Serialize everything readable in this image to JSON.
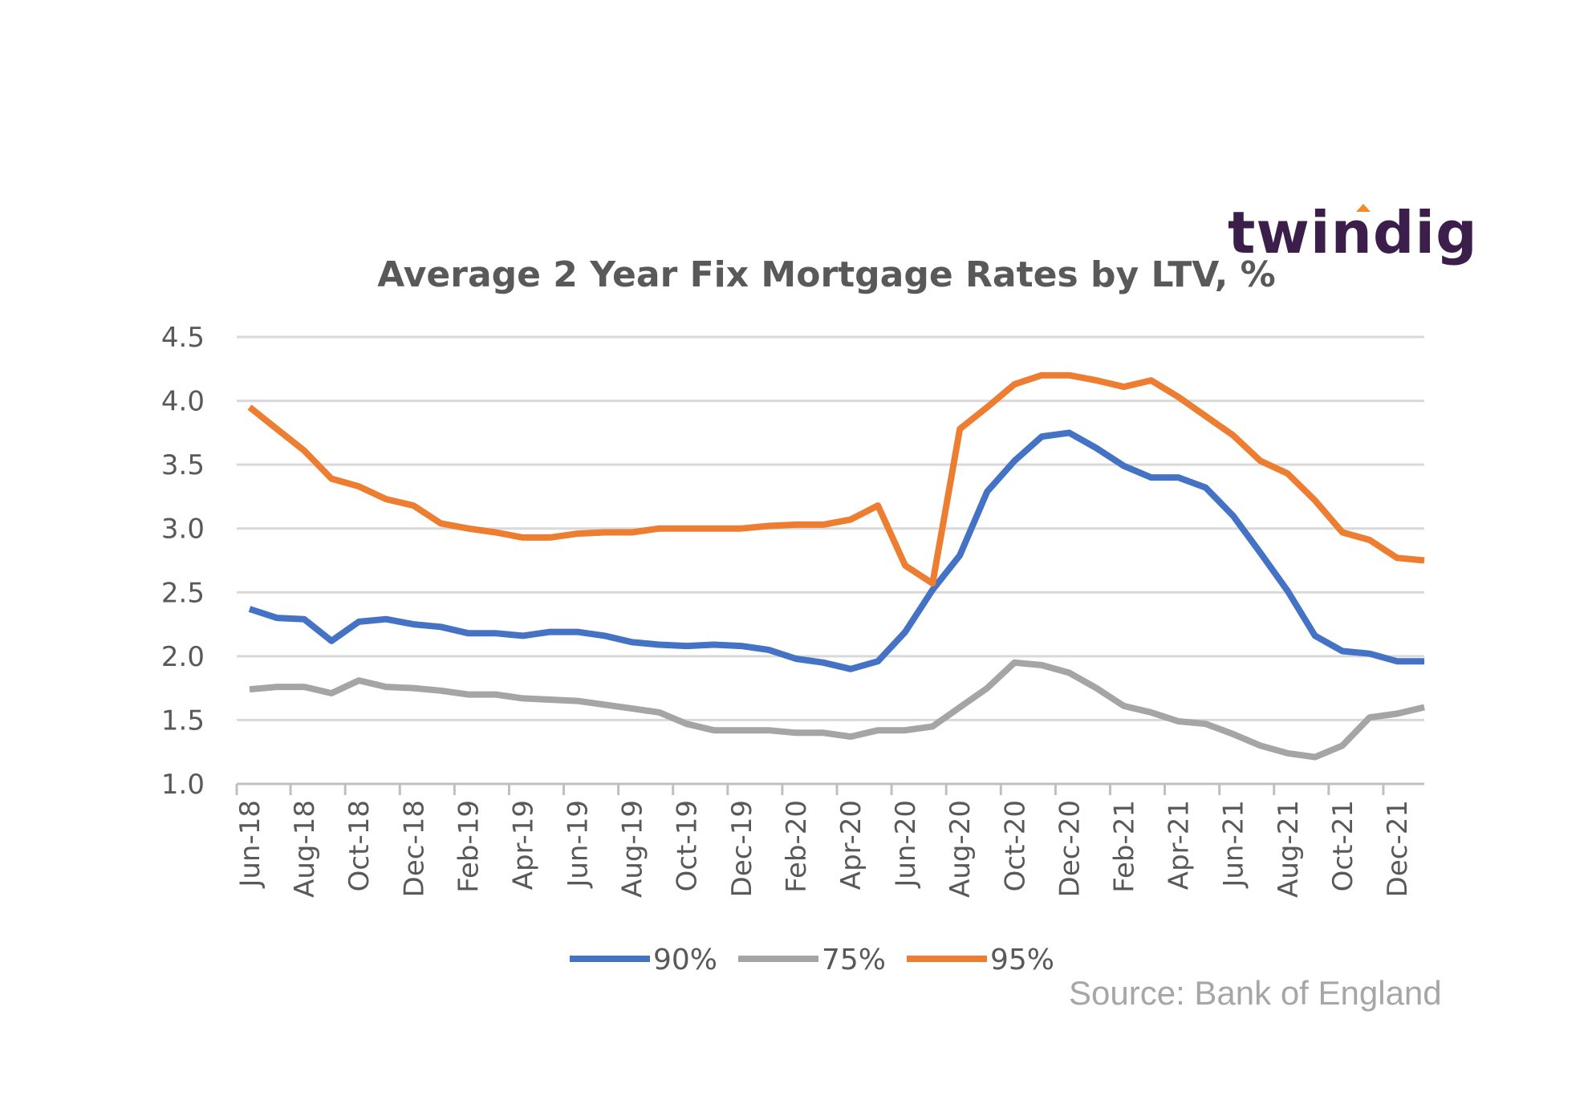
{
  "brand": {
    "name": "twindig",
    "accent_color": "#f28c28",
    "text_color": "#3b1f4a"
  },
  "source": "Source: Bank of England",
  "chart_data": {
    "type": "line",
    "title": "Average 2 Year Fix Mortgage Rates by LTV, %",
    "ylim": [
      1.0,
      4.5
    ],
    "yticks": [
      "1.0",
      "1.5",
      "2.0",
      "2.5",
      "3.0",
      "3.5",
      "4.0",
      "4.5"
    ],
    "ytick_values": [
      1.0,
      1.5,
      2.0,
      2.5,
      3.0,
      3.5,
      4.0,
      4.5
    ],
    "grid": true,
    "legend_position": "bottom",
    "categories": [
      "Jun-18",
      "Jul-18",
      "Aug-18",
      "Sep-18",
      "Oct-18",
      "Nov-18",
      "Dec-18",
      "Jan-19",
      "Feb-19",
      "Mar-19",
      "Apr-19",
      "May-19",
      "Jun-19",
      "Jul-19",
      "Aug-19",
      "Sep-19",
      "Oct-19",
      "Nov-19",
      "Dec-19",
      "Jan-20",
      "Feb-20",
      "Mar-20",
      "Apr-20",
      "May-20",
      "Jun-20",
      "Jul-20",
      "Aug-20",
      "Sep-20",
      "Oct-20",
      "Nov-20",
      "Dec-20",
      "Jan-21",
      "Feb-21",
      "Mar-21",
      "Apr-21",
      "May-21",
      "Jun-21",
      "Jul-21",
      "Aug-21",
      "Sep-21",
      "Oct-21",
      "Nov-21",
      "Dec-21",
      "Jan-22"
    ],
    "xtick_labels": [
      "Jun-18",
      "Aug-18",
      "Oct-18",
      "Dec-18",
      "Feb-19",
      "Apr-19",
      "Jun-19",
      "Aug-19",
      "Oct-19",
      "Dec-19",
      "Feb-20",
      "Apr-20",
      "Jun-20",
      "Aug-20",
      "Oct-20",
      "Dec-20",
      "Feb-21",
      "Apr-21",
      "Jun-21",
      "Aug-21",
      "Oct-21",
      "Dec-21"
    ],
    "series": [
      {
        "name": "90%",
        "color": "#4472c4",
        "values": [
          2.37,
          2.3,
          2.29,
          2.12,
          2.27,
          2.29,
          2.25,
          2.23,
          2.18,
          2.18,
          2.16,
          2.19,
          2.19,
          2.16,
          2.11,
          2.09,
          2.08,
          2.09,
          2.08,
          2.05,
          1.98,
          1.95,
          1.9,
          1.96,
          2.19,
          2.52,
          2.79,
          3.29,
          3.53,
          3.72,
          3.75,
          3.63,
          3.49,
          3.4,
          3.4,
          3.32,
          3.1,
          2.81,
          2.51,
          2.16,
          2.04,
          2.02,
          1.96,
          1.96
        ]
      },
      {
        "name": "75%",
        "color": "#a5a5a5",
        "values": [
          1.74,
          1.76,
          1.76,
          1.71,
          1.81,
          1.76,
          1.75,
          1.73,
          1.7,
          1.7,
          1.67,
          1.66,
          1.65,
          1.62,
          1.59,
          1.56,
          1.47,
          1.42,
          1.42,
          1.42,
          1.4,
          1.4,
          1.37,
          1.42,
          1.42,
          1.45,
          1.6,
          1.75,
          1.95,
          1.93,
          1.87,
          1.75,
          1.61,
          1.56,
          1.49,
          1.47,
          1.39,
          1.3,
          1.24,
          1.21,
          1.3,
          1.52,
          1.55,
          1.6
        ]
      },
      {
        "name": "95%",
        "color": "#ed7d31",
        "values": [
          3.95,
          3.78,
          3.61,
          3.39,
          3.33,
          3.23,
          3.18,
          3.04,
          3.0,
          2.97,
          2.93,
          2.93,
          2.96,
          2.97,
          2.97,
          3.0,
          3.0,
          3.0,
          3.0,
          3.02,
          3.03,
          3.03,
          3.07,
          3.18,
          2.71,
          2.57,
          3.78,
          3.95,
          4.13,
          4.2,
          4.2,
          4.16,
          4.11,
          4.16,
          4.03,
          3.88,
          3.73,
          3.53,
          3.43,
          3.22,
          2.97,
          2.91,
          2.77,
          2.75
        ]
      }
    ]
  }
}
